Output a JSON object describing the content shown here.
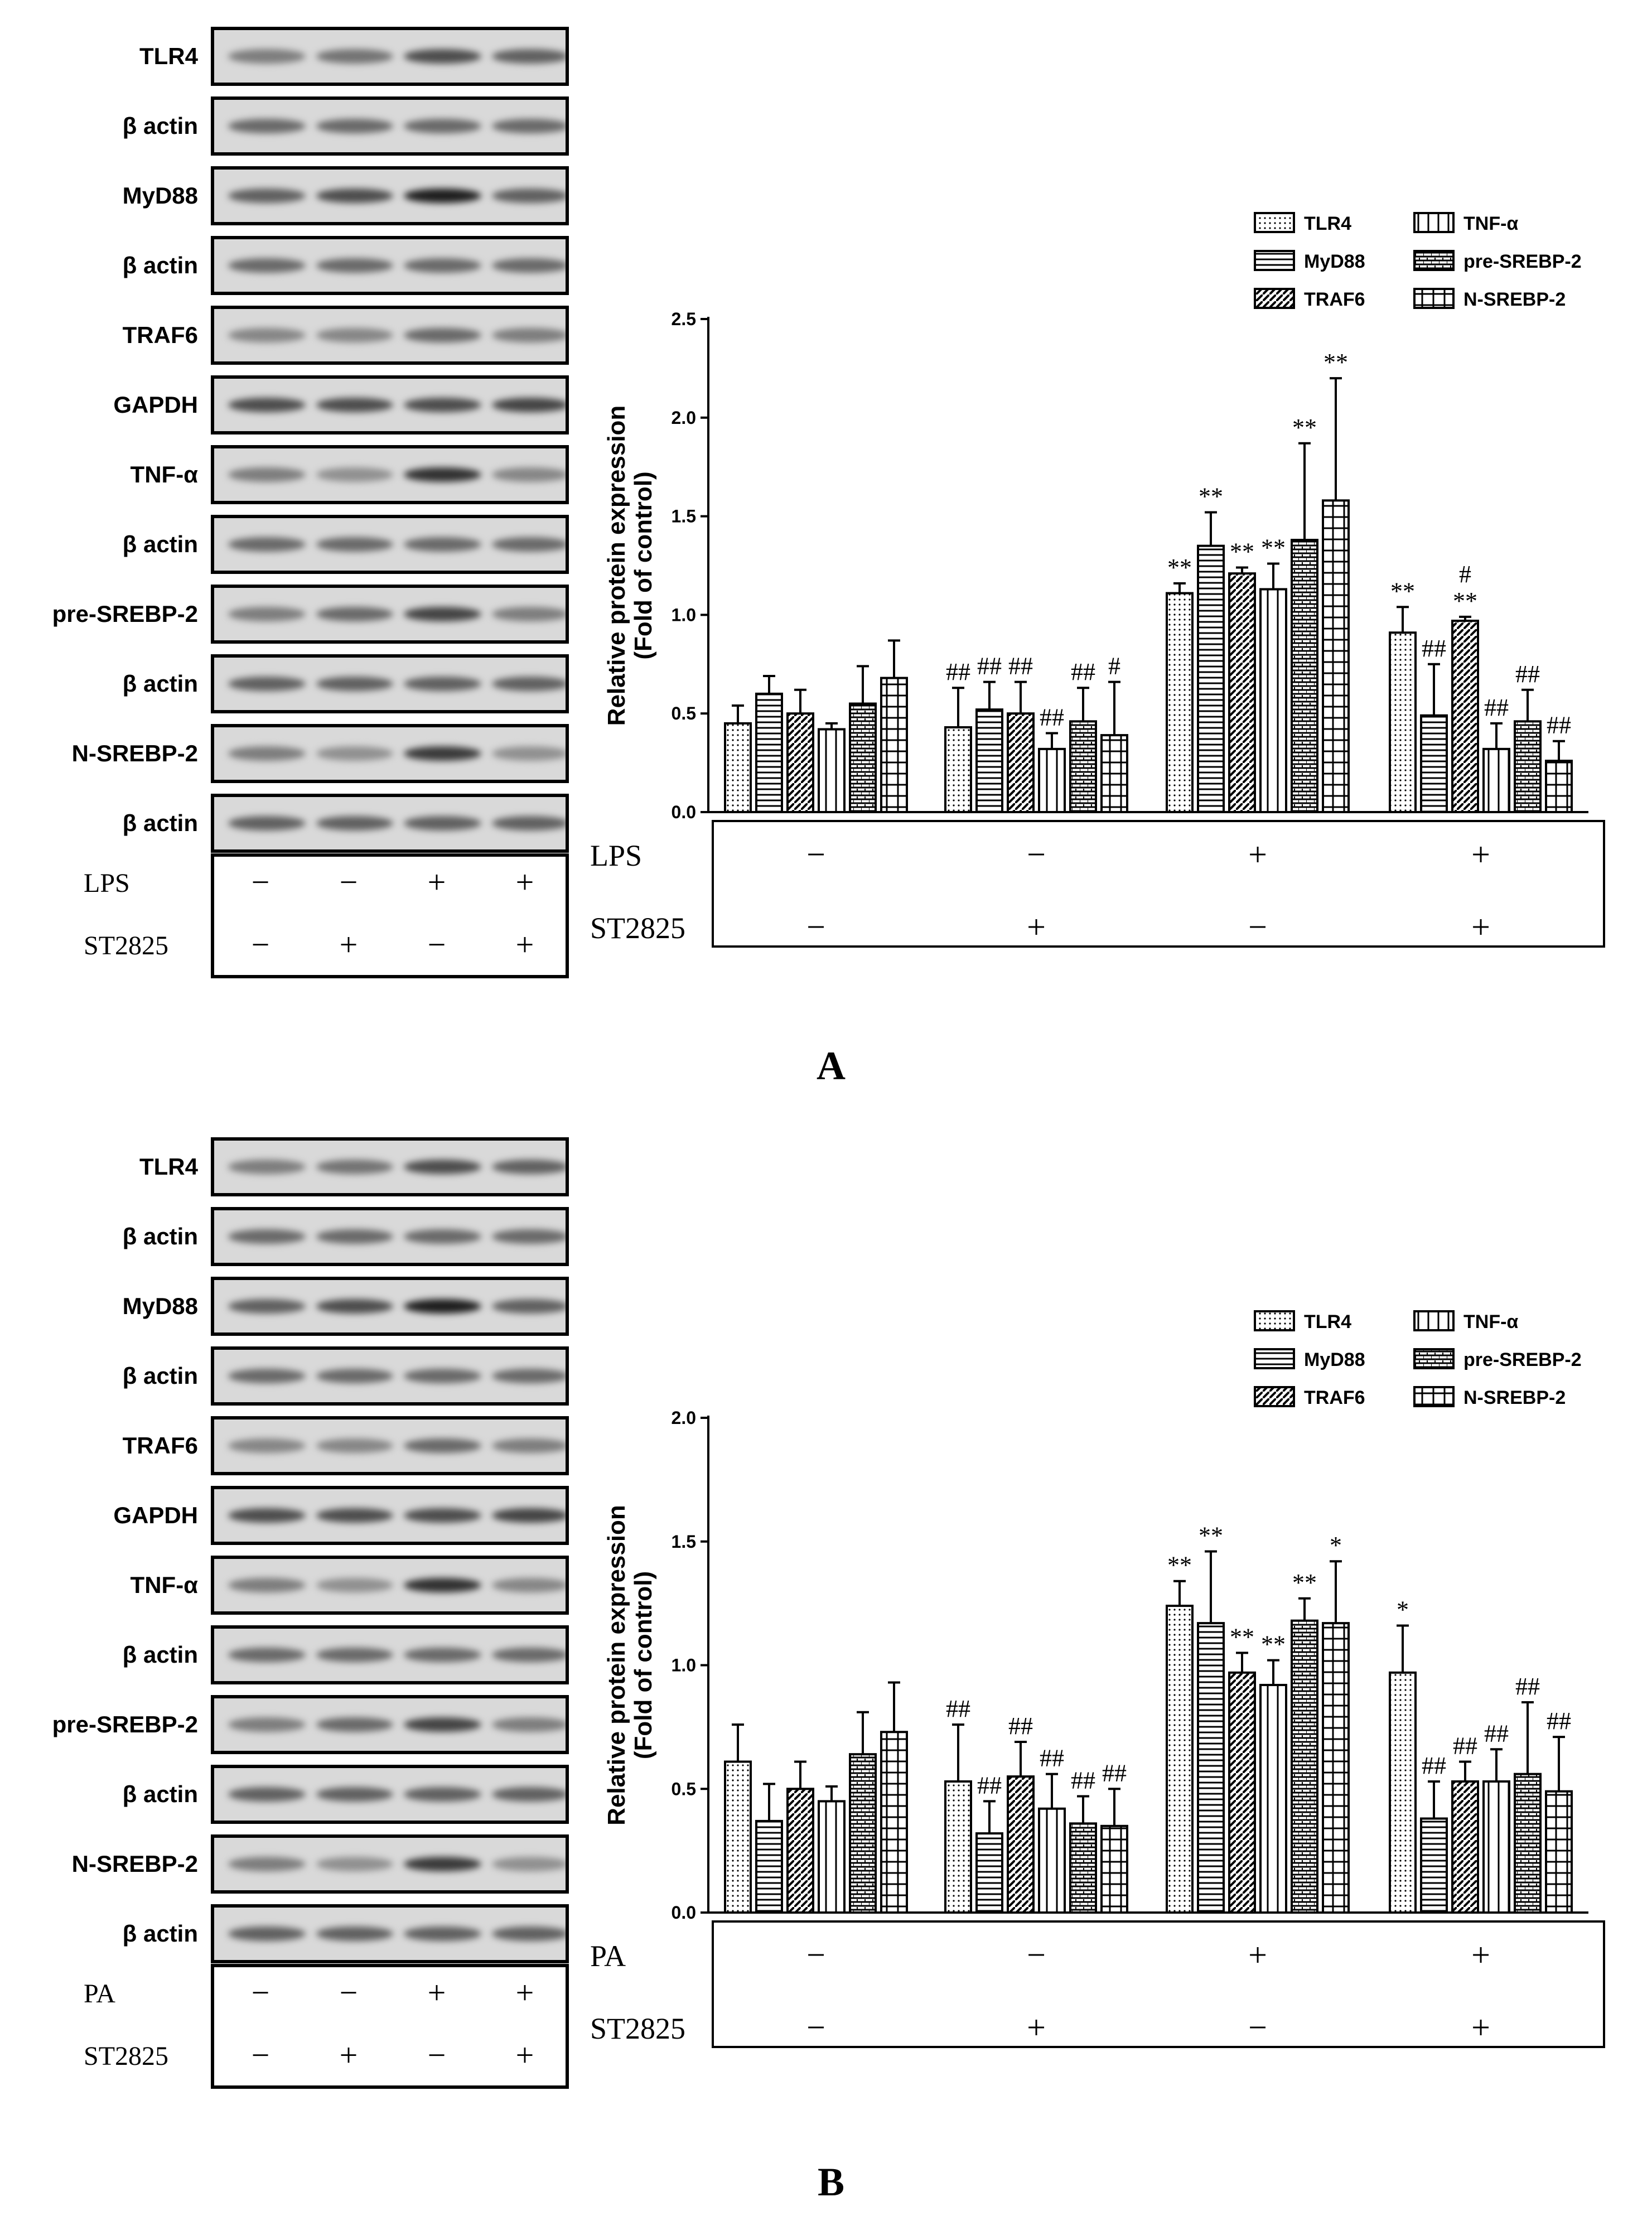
{
  "blot_rows_a": [
    "TLR4",
    "β actin",
    "MyD88",
    "β actin",
    "TRAF6",
    "GAPDH",
    "TNF-α",
    "β actin",
    "pre-SREBP-2",
    "β actin",
    "N-SREBP-2",
    "β actin"
  ],
  "blot_rows_b": [
    "TLR4",
    "β actin",
    "MyD88",
    "β actin",
    "TRAF6",
    "GAPDH",
    "TNF-α",
    "β actin",
    "pre-SREBP-2",
    "β actin",
    "N-SREBP-2",
    "β actin"
  ],
  "treatments_a": {
    "rows": [
      {
        "label": "LPS",
        "signs": [
          "−",
          "−",
          "+",
          "+"
        ]
      },
      {
        "label": "ST2825",
        "signs": [
          "−",
          "+",
          "−",
          "+"
        ]
      }
    ]
  },
  "treatments_b": {
    "rows": [
      {
        "label": "PA",
        "signs": [
          "−",
          "−",
          "+",
          "+"
        ]
      },
      {
        "label": "ST2825",
        "signs": [
          "−",
          "+",
          "−",
          "+"
        ]
      }
    ]
  },
  "panel_a": {
    "letter": "A"
  },
  "panel_b": {
    "letter": "B"
  },
  "chart_data": [
    {
      "type": "bar",
      "ylabel": "Relative protein expression\n(Fold of control)",
      "ylim": [
        0,
        2.5
      ],
      "yticks": [
        "0.0",
        "0.5",
        "1.0",
        "1.5",
        "2.0",
        "2.5"
      ],
      "legend": [
        "TLR4",
        "MyD88",
        "TRAF6",
        "TNF-α",
        "pre-SREBP-2",
        "N-SREBP-2"
      ],
      "legend_position": "top-right",
      "groups": 4,
      "series": [
        {
          "name": "TLR4",
          "values": [
            0.45,
            0.43,
            1.11,
            0.91
          ],
          "errors": [
            0.09,
            0.2,
            0.05,
            0.13
          ],
          "annotations": [
            "",
            "##",
            "**",
            "**"
          ]
        },
        {
          "name": "MyD88",
          "values": [
            0.6,
            0.52,
            1.35,
            0.49
          ],
          "errors": [
            0.09,
            0.14,
            0.17,
            0.26
          ],
          "annotations": [
            "",
            "##",
            "**",
            "##"
          ]
        },
        {
          "name": "TRAF6",
          "values": [
            0.5,
            0.5,
            1.21,
            0.97
          ],
          "errors": [
            0.12,
            0.16,
            0.03,
            0.02
          ],
          "annotations": [
            "",
            "##",
            "**",
            "#\n**"
          ]
        },
        {
          "name": "TNF-α",
          "values": [
            0.42,
            0.32,
            1.13,
            0.32
          ],
          "errors": [
            0.03,
            0.08,
            0.13,
            0.13
          ],
          "annotations": [
            "",
            "##",
            "**",
            "##"
          ]
        },
        {
          "name": "pre-SREBP-2",
          "values": [
            0.55,
            0.46,
            1.38,
            0.46
          ],
          "errors": [
            0.19,
            0.17,
            0.49,
            0.16
          ],
          "annotations": [
            "",
            "##",
            "**",
            "##"
          ]
        },
        {
          "name": "N-SREBP-2",
          "values": [
            0.68,
            0.39,
            1.58,
            0.26
          ],
          "errors": [
            0.19,
            0.27,
            0.62,
            0.1
          ],
          "annotations": [
            "",
            "#",
            "**",
            "##"
          ]
        }
      ],
      "table": [
        {
          "label": "LPS",
          "signs": [
            "−",
            "−",
            "+",
            "+"
          ]
        },
        {
          "label": "ST2825",
          "signs": [
            "−",
            "+",
            "−",
            "+"
          ]
        }
      ]
    },
    {
      "type": "bar",
      "ylabel": "Relative protein expression\n(Fold of control)",
      "ylim": [
        0,
        2.0
      ],
      "yticks": [
        "0.0",
        "0.5",
        "1.0",
        "1.5",
        "2.0"
      ],
      "legend": [
        "TLR4",
        "MyD88",
        "TRAF6",
        "TNF-α",
        "pre-SREBP-2",
        "N-SREBP-2"
      ],
      "legend_position": "top-right",
      "groups": 4,
      "series": [
        {
          "name": "TLR4",
          "values": [
            0.61,
            0.53,
            1.24,
            0.97
          ],
          "errors": [
            0.15,
            0.23,
            0.1,
            0.19
          ],
          "annotations": [
            "",
            "##",
            "**",
            "*"
          ]
        },
        {
          "name": "MyD88",
          "values": [
            0.37,
            0.32,
            1.17,
            0.38
          ],
          "errors": [
            0.15,
            0.13,
            0.29,
            0.15
          ],
          "annotations": [
            "",
            "##",
            "**",
            "##"
          ]
        },
        {
          "name": "TRAF6",
          "values": [
            0.5,
            0.55,
            0.97,
            0.53
          ],
          "errors": [
            0.11,
            0.14,
            0.08,
            0.08
          ],
          "annotations": [
            "",
            "##",
            "**",
            "##"
          ]
        },
        {
          "name": "TNF-α",
          "values": [
            0.45,
            0.42,
            0.92,
            0.53
          ],
          "errors": [
            0.06,
            0.14,
            0.1,
            0.13
          ],
          "annotations": [
            "",
            "##",
            "**",
            "##"
          ]
        },
        {
          "name": "pre-SREBP-2",
          "values": [
            0.64,
            0.36,
            1.18,
            0.56
          ],
          "errors": [
            0.17,
            0.11,
            0.09,
            0.29
          ],
          "annotations": [
            "",
            "##",
            "**",
            "##"
          ]
        },
        {
          "name": "N-SREBP-2",
          "values": [
            0.73,
            0.35,
            1.17,
            0.49
          ],
          "errors": [
            0.2,
            0.15,
            0.25,
            0.22
          ],
          "annotations": [
            "",
            "##",
            "*",
            "##"
          ]
        }
      ],
      "table": [
        {
          "label": "PA",
          "signs": [
            "−",
            "−",
            "+",
            "+"
          ]
        },
        {
          "label": "ST2825",
          "signs": [
            "−",
            "+",
            "−",
            "+"
          ]
        }
      ]
    }
  ]
}
